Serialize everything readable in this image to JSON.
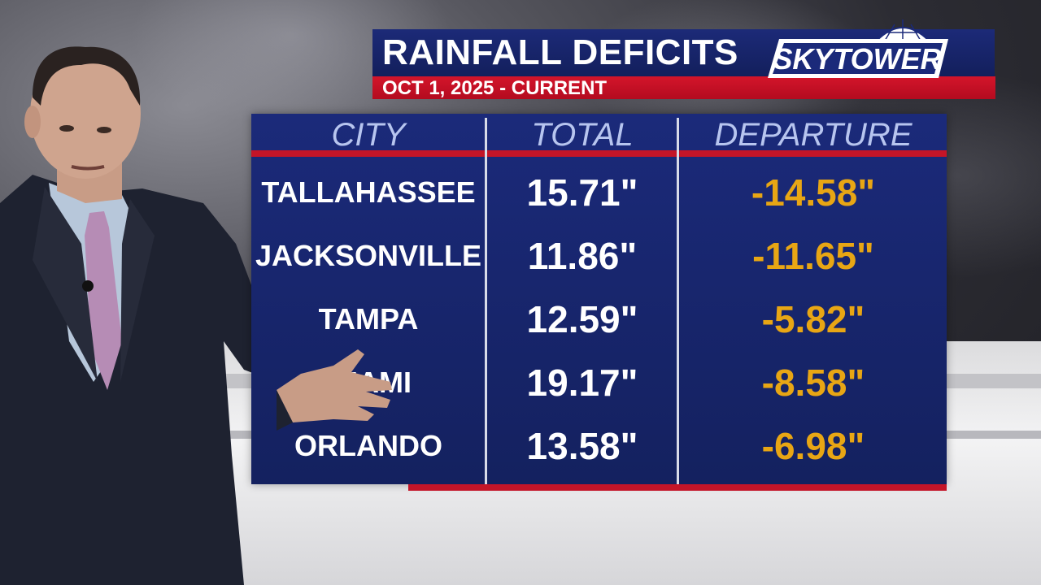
{
  "title": "RAINFALL DEFICITS",
  "subtitle": "OCT 1, 2025 - CURRENT",
  "logo": {
    "text": "SKYTOWER",
    "icon": "radar-dome-icon"
  },
  "table": {
    "headers": {
      "city": "CITY",
      "total": "TOTAL",
      "departure": "DEPARTURE"
    },
    "rows": [
      {
        "city": "TALLAHASSEE",
        "total": "15.71\"",
        "departure": "-14.58\""
      },
      {
        "city": "JACKSONVILLE",
        "total": "11.86\"",
        "departure": "-11.65\""
      },
      {
        "city": "TAMPA",
        "total": "12.59\"",
        "departure": "-5.82\""
      },
      {
        "city": "MIAMI",
        "total": "19.17\"",
        "departure": "-8.58\""
      },
      {
        "city": "ORLANDO",
        "total": "13.58\"",
        "departure": "-6.98\""
      }
    ]
  },
  "colors": {
    "panel": "#1b2a7a",
    "accent_red": "#c41528",
    "departure_text": "#e8a614",
    "header_text": "#b7c5ef"
  }
}
